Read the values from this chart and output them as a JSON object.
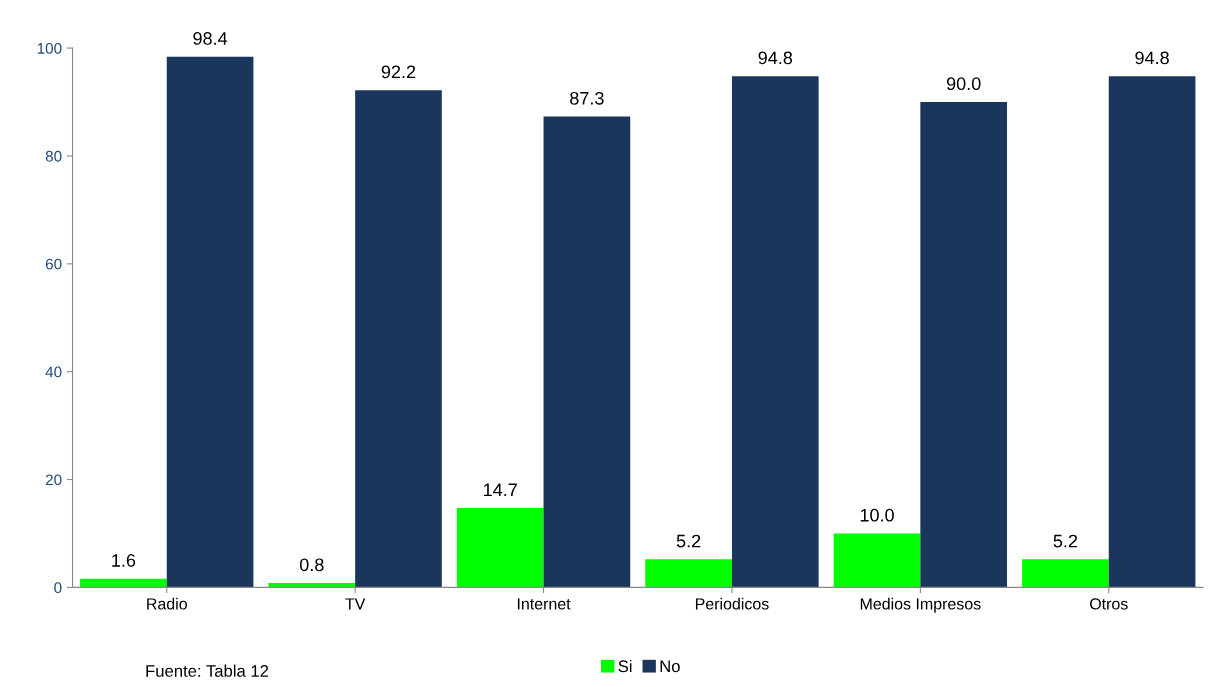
{
  "chart_data": {
    "type": "bar",
    "categories": [
      "Radio",
      "TV",
      "Internet",
      "Periodicos",
      "Medios Impresos",
      "Otros"
    ],
    "series": [
      {
        "name": "Si",
        "color": "#00ff00",
        "values": [
          1.6,
          0.8,
          14.7,
          5.2,
          10,
          5.2
        ],
        "value_labels": [
          "1.6",
          "0.8",
          "14.7",
          "5.2",
          "10.0",
          "5.2"
        ]
      },
      {
        "name": "No",
        "color": "#1b365d",
        "values": [
          98.4,
          92.2,
          87.3,
          94.8,
          90,
          94.8
        ],
        "value_labels": [
          "98.4",
          "92.2",
          "87.3",
          "94.8",
          "90.0",
          "94.8"
        ]
      }
    ],
    "ylim": [
      0,
      100
    ],
    "yticks": [
      0,
      20,
      40,
      60,
      80,
      100
    ],
    "grid": false,
    "legend": "bottom",
    "annotations": [
      "Fuente: Tabla 12"
    ]
  }
}
